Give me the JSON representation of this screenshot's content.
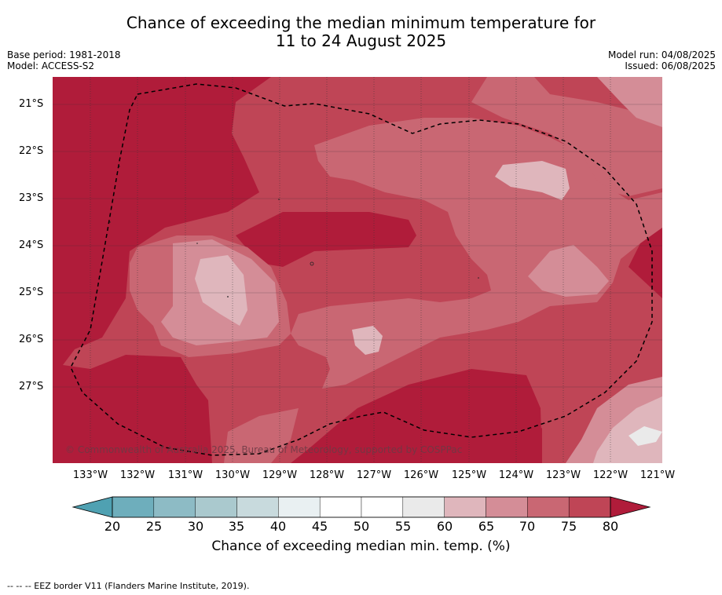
{
  "title_line1": "Chance of exceeding the median minimum temperature for",
  "title_line2": "11 to 24 August 2025",
  "base_period": "Base period: 1981-2018",
  "model": "Model: ACCESS-S2",
  "model_run": "Model run: 04/08/2025",
  "issued": "Issued: 06/08/2025",
  "copyright": "© Commonwealth of Australia 2025, Bureau of Meteorology, supported by COSPPac",
  "footnote": "--  --  -- EEZ border V11 (Flanders Marine Institute, 2019).",
  "lat_labels": [
    "21°S",
    "22°S",
    "23°S",
    "24°S",
    "25°S",
    "26°S",
    "27°S"
  ],
  "lon_labels": [
    "133°W",
    "132°W",
    "131°W",
    "130°W",
    "129°W",
    "128°W",
    "127°W",
    "126°W",
    "125°W",
    "124°W",
    "123°W",
    "122°W",
    "121°W"
  ],
  "colorbar": {
    "title": "Chance of exceeding median min. temp. (%)",
    "ticks": [
      "20",
      "25",
      "30",
      "35",
      "40",
      "45",
      "50",
      "55",
      "60",
      "65",
      "70",
      "75",
      "80"
    ],
    "colors": [
      "#6eaebc",
      "#8dbbc5",
      "#aac9ce",
      "#c8dadd",
      "#e9f0f2",
      "#ffffff",
      "#ffffff",
      "#eaeaea",
      "#dfb6bc",
      "#d48d97",
      "#c96773",
      "#bf4556"
    ],
    "under_color": "#4fa1b2",
    "over_color": "#b01c3a"
  },
  "legend_colors": {
    "80plus": "#b01c3a",
    "75_80": "#bf4556",
    "70_75": "#c96773",
    "65_70": "#d48d97",
    "60_65": "#dfb6bc",
    "55_60": "#eaeaea"
  }
}
